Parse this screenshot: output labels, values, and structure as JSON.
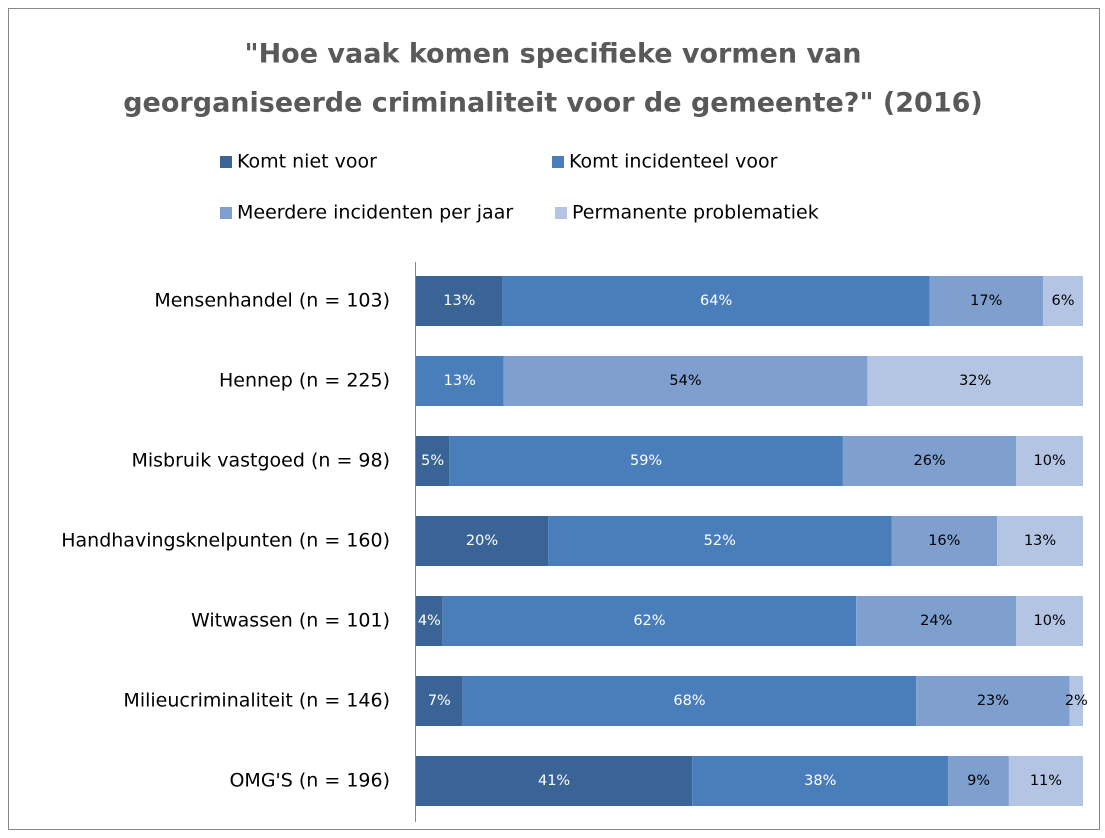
{
  "chart_data": {
    "type": "stacked-bar-horizontal-100",
    "title": [
      "\"Hoe vaak komen specifieke vormen van",
      "georganiseerde criminaliteit voor de gemeente?\" (2016)"
    ],
    "legend": "top",
    "categories": [
      "Mensenhandel (n = 103)",
      "Hennep (n = 225)",
      "Misbruik vastgoed (n = 98)",
      "Handhavingsknelpunten (n = 160)",
      "Witwassen (n = 101)",
      "Milieucriminaliteit (n = 146)",
      "OMG'S (n = 196)"
    ],
    "series": [
      {
        "name": "Komt niet voor",
        "color": "#3b6496",
        "text_color": "#ffffff",
        "values": [
          13,
          null,
          5,
          20,
          4,
          7,
          41
        ],
        "value_labels": [
          "13%",
          null,
          "5%",
          "20%",
          "4%",
          "7%",
          "41%"
        ]
      },
      {
        "name": "Komt incidenteel voor",
        "color": "#4a7ebb",
        "text_color": "#ffffff",
        "values": [
          64,
          13,
          59,
          52,
          62,
          68,
          38
        ],
        "value_labels": [
          "64%",
          "13%",
          "59%",
          "52%",
          "62%",
          "68%",
          "38%"
        ]
      },
      {
        "name": "Meerdere incidenten per jaar",
        "color": "#7f9fcf",
        "text_color": "#000000",
        "values": [
          17,
          54,
          26,
          16,
          24,
          23,
          9
        ],
        "value_labels": [
          "17%",
          "54%",
          "26%",
          "16%",
          "24%",
          "23%",
          "9%"
        ]
      },
      {
        "name": "Permanente problematiek",
        "color": "#b4c5e3",
        "text_color": "#000000",
        "values": [
          6,
          32,
          10,
          13,
          10,
          2,
          11
        ],
        "value_labels": [
          "6%",
          "32%",
          "10%",
          "13%",
          "10%",
          "2%",
          "11%"
        ]
      }
    ]
  }
}
